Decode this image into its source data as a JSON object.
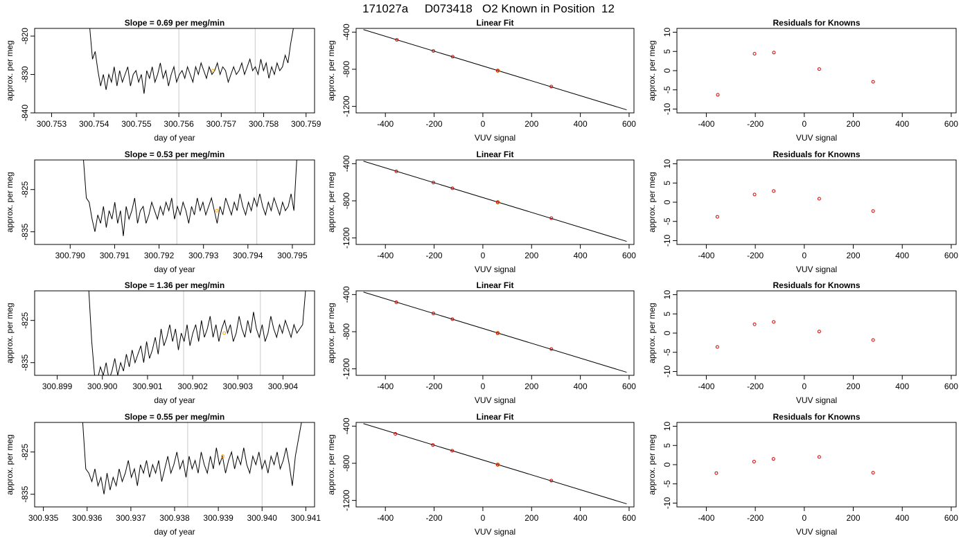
{
  "title": "171027a     D073418   O2 Known in Position  12",
  "rows": [
    {
      "time": {
        "title": "Slope =  0.69  per meg/min",
        "xlabel": "day of year",
        "ylabel": "approx. per meg",
        "xlim": [
          300.7526,
          300.7592
        ],
        "ylim": [
          -840,
          -818
        ],
        "xticks": [
          "300.753",
          "300.754",
          "300.755",
          "300.756",
          "300.757",
          "300.758",
          "300.759"
        ],
        "yticks": [
          -840,
          -830,
          -820
        ],
        "vlines": [
          300.756,
          300.7578
        ],
        "marker": {
          "x": 300.7568,
          "y": -829
        },
        "trace": {
          "x_start": 300.7539,
          "x_end": 300.7587,
          "y": [
            -818,
            -826,
            -824,
            -829,
            -833,
            -830,
            -834,
            -830,
            -832,
            -828,
            -833,
            -829,
            -832,
            -830,
            -828,
            -833,
            -830,
            -829,
            -832,
            -830,
            -835,
            -829,
            -831,
            -828,
            -832,
            -830,
            -827,
            -831,
            -829,
            -833,
            -830,
            -828,
            -832,
            -830,
            -829,
            -831,
            -828,
            -830,
            -832,
            -828,
            -830,
            -827,
            -829,
            -831,
            -828,
            -830,
            -829,
            -827,
            -830,
            -828,
            -829,
            -832,
            -830,
            -828,
            -830,
            -829,
            -827,
            -830,
            -828,
            -826,
            -829,
            -828,
            -830,
            -826,
            -829,
            -827,
            -831,
            -828,
            -830,
            -827,
            -829,
            -828,
            -825,
            -827,
            -822,
            -818
          ]
        }
      },
      "fit": {
        "title": "Linear Fit",
        "xlabel": "VUV signal",
        "ylabel": "approx. per meg",
        "xlim": [
          -520,
          620
        ],
        "ylim": [
          -1270,
          -360
        ],
        "xticks": [
          -400,
          -200,
          0,
          200,
          400,
          600
        ],
        "yticks": [
          -400,
          -800,
          -1200
        ],
        "line": {
          "intercept": -765,
          "slope": -0.8
        },
        "points": [
          {
            "x": -353,
            "y": -483
          },
          {
            "x": -203,
            "y": -603
          },
          {
            "x": -124,
            "y": -665
          },
          {
            "x": 61,
            "y": -815
          },
          {
            "x": 281,
            "y": -987
          }
        ],
        "highlight_x": 61
      },
      "resid": {
        "title": "Residuals for Knowns",
        "xlabel": "VUV signal",
        "ylabel": "approx. per meg",
        "xlim": [
          -520,
          620
        ],
        "ylim": [
          -11,
          11
        ],
        "xticks": [
          -400,
          -200,
          0,
          200,
          400,
          600
        ],
        "yticks": [
          -10,
          -5,
          0,
          5,
          10
        ],
        "points": [
          {
            "x": -353,
            "y": -6.3
          },
          {
            "x": -203,
            "y": 4.4
          },
          {
            "x": -124,
            "y": 4.7
          },
          {
            "x": 61,
            "y": 0.4
          },
          {
            "x": 281,
            "y": -2.9
          }
        ]
      }
    },
    {
      "time": {
        "title": "Slope =  0.53  per meg/min",
        "xlabel": "day of year",
        "ylabel": "approx. per meg",
        "xlim": [
          300.7892,
          300.7955
        ],
        "ylim": [
          -838,
          -818
        ],
        "xticks": [
          "300.790",
          "300.791",
          "300.792",
          "300.793",
          "300.794",
          "300.795"
        ],
        "yticks": [
          -835,
          -825
        ],
        "vlines": [
          300.7924,
          300.7942
        ],
        "marker": {
          "x": 300.7933,
          "y": -830
        },
        "trace": {
          "x_start": 300.7903,
          "x_end": 300.7951,
          "y": [
            -818,
            -827,
            -828,
            -832,
            -835,
            -831,
            -833,
            -829,
            -834,
            -830,
            -832,
            -828,
            -833,
            -830,
            -836,
            -829,
            -832,
            -830,
            -827,
            -833,
            -830,
            -829,
            -833,
            -831,
            -828,
            -830,
            -832,
            -829,
            -831,
            -828,
            -830,
            -827,
            -832,
            -829,
            -831,
            -828,
            -830,
            -833,
            -829,
            -831,
            -827,
            -830,
            -828,
            -831,
            -829,
            -827,
            -830,
            -833,
            -829,
            -831,
            -827,
            -829,
            -831,
            -828,
            -830,
            -826,
            -829,
            -831,
            -828,
            -830,
            -827,
            -829,
            -826,
            -829,
            -831,
            -828,
            -830,
            -827,
            -829,
            -831,
            -828,
            -830,
            -829,
            -826,
            -830,
            -818
          ]
        }
      },
      "fit": {
        "title": "Linear Fit",
        "xlabel": "VUV signal",
        "ylabel": "approx. per meg",
        "xlim": [
          -520,
          620
        ],
        "ylim": [
          -1270,
          -360
        ],
        "xticks": [
          -400,
          -200,
          0,
          200,
          400,
          600
        ],
        "yticks": [
          -400,
          -800,
          -1200
        ],
        "line": {
          "intercept": -765,
          "slope": -0.8
        },
        "points": [
          {
            "x": -355,
            "y": -483
          },
          {
            "x": -203,
            "y": -603
          },
          {
            "x": -125,
            "y": -665
          },
          {
            "x": 61,
            "y": -815
          },
          {
            "x": 281,
            "y": -987
          }
        ],
        "highlight_x": 61
      },
      "resid": {
        "title": "Residuals for Knowns",
        "xlabel": "VUV signal",
        "ylabel": "approx. per meg",
        "xlim": [
          -520,
          620
        ],
        "ylim": [
          -11,
          11
        ],
        "xticks": [
          -400,
          -200,
          0,
          200,
          400,
          600
        ],
        "yticks": [
          -10,
          -5,
          0,
          5,
          10
        ],
        "points": [
          {
            "x": -355,
            "y": -3.8
          },
          {
            "x": -203,
            "y": 2.0
          },
          {
            "x": -125,
            "y": 2.9
          },
          {
            "x": 61,
            "y": 0.9
          },
          {
            "x": 281,
            "y": -2.3
          }
        ]
      }
    },
    {
      "time": {
        "title": "Slope =  1.36  per meg/min",
        "xlabel": "day of year",
        "ylabel": "approx. per meg",
        "xlim": [
          300.8985,
          300.9047
        ],
        "ylim": [
          -838,
          -818
        ],
        "xticks": [
          "300.899",
          "300.900",
          "300.901",
          "300.902",
          "300.903",
          "300.904"
        ],
        "yticks": [
          -835,
          -825
        ],
        "vlines": [
          300.9018,
          300.9035
        ],
        "marker": {
          "x": 300.9027,
          "y": -828
        },
        "trace": {
          "x_start": 300.8997,
          "x_end": 300.9045,
          "y": [
            -818,
            -830,
            -838,
            -839,
            -836,
            -838,
            -835,
            -839,
            -837,
            -834,
            -838,
            -835,
            -837,
            -833,
            -836,
            -832,
            -835,
            -833,
            -831,
            -835,
            -830,
            -834,
            -832,
            -829,
            -833,
            -827,
            -831,
            -829,
            -826,
            -830,
            -827,
            -832,
            -828,
            -830,
            -826,
            -831,
            -828,
            -826,
            -830,
            -825,
            -829,
            -827,
            -824,
            -829,
            -826,
            -830,
            -827,
            -825,
            -828,
            -826,
            -830,
            -828,
            -824,
            -827,
            -829,
            -825,
            -828,
            -823,
            -827,
            -829,
            -826,
            -830,
            -828,
            -824,
            -827,
            -829,
            -826,
            -828,
            -825,
            -827,
            -829,
            -826,
            -828,
            -827,
            -826,
            -818
          ]
        }
      },
      "fit": {
        "title": "Linear Fit",
        "xlabel": "VUV signal",
        "ylabel": "approx. per meg",
        "xlim": [
          -520,
          620
        ],
        "ylim": [
          -1270,
          -360
        ],
        "xticks": [
          -400,
          -200,
          0,
          200,
          400,
          600
        ],
        "yticks": [
          -400,
          -800,
          -1200
        ],
        "line": {
          "intercept": -765,
          "slope": -0.8
        },
        "points": [
          {
            "x": -355,
            "y": -483
          },
          {
            "x": -203,
            "y": -603
          },
          {
            "x": -125,
            "y": -665
          },
          {
            "x": 61,
            "y": -815
          },
          {
            "x": 281,
            "y": -987
          }
        ],
        "highlight_x": 61
      },
      "resid": {
        "title": "Residuals for Knowns",
        "xlabel": "VUV signal",
        "ylabel": "approx. per meg",
        "xlim": [
          -520,
          620
        ],
        "ylim": [
          -11,
          11
        ],
        "xticks": [
          -400,
          -200,
          0,
          200,
          400,
          600
        ],
        "yticks": [
          -10,
          -5,
          0,
          5,
          10
        ],
        "points": [
          {
            "x": -355,
            "y": -3.6
          },
          {
            "x": -203,
            "y": 2.3
          },
          {
            "x": -125,
            "y": 2.9
          },
          {
            "x": 61,
            "y": 0.4
          },
          {
            "x": 281,
            "y": -1.8
          }
        ]
      }
    },
    {
      "time": {
        "title": "Slope =  0.55  per meg/min",
        "xlabel": "day of year",
        "ylabel": "approx. per meg",
        "xlim": [
          300.9348,
          300.9412
        ],
        "ylim": [
          -838,
          -818
        ],
        "xticks": [
          "300.935",
          "300.936",
          "300.937",
          "300.938",
          "300.939",
          "300.940",
          "300.941"
        ],
        "yticks": [
          -835,
          -825
        ],
        "vlines": [
          300.9383,
          300.94
        ],
        "marker": {
          "x": 300.9391,
          "y": -826
        },
        "trace": {
          "x_start": 300.9359,
          "x_end": 300.9409,
          "y": [
            -818,
            -829,
            -830,
            -832,
            -829,
            -833,
            -831,
            -835,
            -830,
            -834,
            -831,
            -833,
            -829,
            -832,
            -830,
            -827,
            -831,
            -829,
            -833,
            -828,
            -830,
            -827,
            -831,
            -828,
            -830,
            -827,
            -832,
            -829,
            -826,
            -830,
            -828,
            -825,
            -829,
            -827,
            -831,
            -826,
            -829,
            -827,
            -830,
            -825,
            -828,
            -830,
            -826,
            -829,
            -824,
            -828,
            -826,
            -830,
            -827,
            -825,
            -829,
            -826,
            -828,
            -824,
            -828,
            -830,
            -826,
            -828,
            -825,
            -829,
            -827,
            -830,
            -826,
            -828,
            -825,
            -829,
            -827,
            -824,
            -828,
            -833,
            -826,
            -822,
            -818
          ]
        }
      },
      "fit": {
        "title": "Linear Fit",
        "xlabel": "VUV signal",
        "ylabel": "approx. per meg",
        "xlim": [
          -520,
          620
        ],
        "ylim": [
          -1270,
          -360
        ],
        "xticks": [
          -400,
          -200,
          0,
          200,
          400,
          600
        ],
        "yticks": [
          -400,
          -800,
          -1200
        ],
        "line": {
          "intercept": -765,
          "slope": -0.8
        },
        "points": [
          {
            "x": -359,
            "y": -483
          },
          {
            "x": -205,
            "y": -603
          },
          {
            "x": -126,
            "y": -665
          },
          {
            "x": 61,
            "y": -815
          },
          {
            "x": 281,
            "y": -987
          }
        ],
        "highlight_x": 61
      },
      "resid": {
        "title": "Residuals for Knowns",
        "xlabel": "VUV signal",
        "ylabel": "approx. per meg",
        "xlim": [
          -520,
          620
        ],
        "ylim": [
          -11,
          11
        ],
        "xticks": [
          -400,
          -200,
          0,
          200,
          400,
          600
        ],
        "yticks": [
          -10,
          -5,
          0,
          5,
          10
        ],
        "points": [
          {
            "x": -359,
            "y": -2.2
          },
          {
            "x": -205,
            "y": 0.8
          },
          {
            "x": -126,
            "y": 1.5
          },
          {
            "x": 61,
            "y": 2.0
          },
          {
            "x": 281,
            "y": -2.1
          }
        ]
      }
    }
  ],
  "colors": {
    "axis": "#000000",
    "trace": "#000000",
    "vline": "#c8c8c8",
    "marker": "#ffa500",
    "points": "#d00000"
  },
  "chart_data": [
    {
      "type": "line",
      "title": "Slope =  0.69  per meg/min",
      "xlabel": "day of year",
      "ylabel": "approx. per meg",
      "xlim": [
        300.7526,
        300.7592
      ],
      "ylim": [
        -840,
        -818
      ]
    },
    {
      "type": "scatter",
      "title": "Linear Fit",
      "xlabel": "VUV signal",
      "ylabel": "approx. per meg",
      "x": [
        -353,
        -203,
        -124,
        61,
        281
      ],
      "y": [
        -483,
        -603,
        -665,
        -815,
        -987
      ]
    },
    {
      "type": "scatter",
      "title": "Residuals for Knowns",
      "xlabel": "VUV signal",
      "ylabel": "approx. per meg",
      "x": [
        -353,
        -203,
        -124,
        61,
        281
      ],
      "y": [
        -6.3,
        4.4,
        4.7,
        0.4,
        -2.9
      ]
    },
    {
      "type": "line",
      "title": "Slope =  0.53  per meg/min",
      "xlabel": "day of year",
      "ylabel": "approx. per meg",
      "xlim": [
        300.7892,
        300.7955
      ],
      "ylim": [
        -838,
        -818
      ]
    },
    {
      "type": "scatter",
      "title": "Linear Fit",
      "xlabel": "VUV signal",
      "ylabel": "approx. per meg",
      "x": [
        -355,
        -203,
        -125,
        61,
        281
      ],
      "y": [
        -483,
        -603,
        -665,
        -815,
        -987
      ]
    },
    {
      "type": "scatter",
      "title": "Residuals for Knowns",
      "xlabel": "VUV signal",
      "ylabel": "approx. per meg",
      "x": [
        -355,
        -203,
        -125,
        61,
        281
      ],
      "y": [
        -3.8,
        2.0,
        2.9,
        0.9,
        -2.3
      ]
    },
    {
      "type": "line",
      "title": "Slope =  1.36  per meg/min",
      "xlabel": "day of year",
      "ylabel": "approx. per meg",
      "xlim": [
        300.8985,
        300.9047
      ],
      "ylim": [
        -838,
        -818
      ]
    },
    {
      "type": "scatter",
      "title": "Linear Fit",
      "xlabel": "VUV signal",
      "ylabel": "approx. per meg",
      "x": [
        -355,
        -203,
        -125,
        61,
        281
      ],
      "y": [
        -483,
        -603,
        -665,
        -815,
        -987
      ]
    },
    {
      "type": "scatter",
      "title": "Residuals for Knowns",
      "xlabel": "VUV signal",
      "ylabel": "approx. per meg",
      "x": [
        -355,
        -203,
        -125,
        61,
        281
      ],
      "y": [
        -3.6,
        2.3,
        2.9,
        0.4,
        -1.8
      ]
    },
    {
      "type": "line",
      "title": "Slope =  0.55  per meg/min",
      "xlabel": "day of year",
      "ylabel": "approx. per meg",
      "xlim": [
        300.9348,
        300.9412
      ],
      "ylim": [
        -838,
        -818
      ]
    },
    {
      "type": "scatter",
      "title": "Linear Fit",
      "xlabel": "VUV signal",
      "ylabel": "approx. per meg",
      "x": [
        -359,
        -205,
        -126,
        61,
        281
      ],
      "y": [
        -483,
        -603,
        -665,
        -815,
        -987
      ]
    },
    {
      "type": "scatter",
      "title": "Residuals for Knowns",
      "xlabel": "VUV signal",
      "ylabel": "approx. per meg",
      "x": [
        -359,
        -205,
        -126,
        61,
        281
      ],
      "y": [
        -2.2,
        0.8,
        1.5,
        2.0,
        -2.1
      ]
    }
  ]
}
